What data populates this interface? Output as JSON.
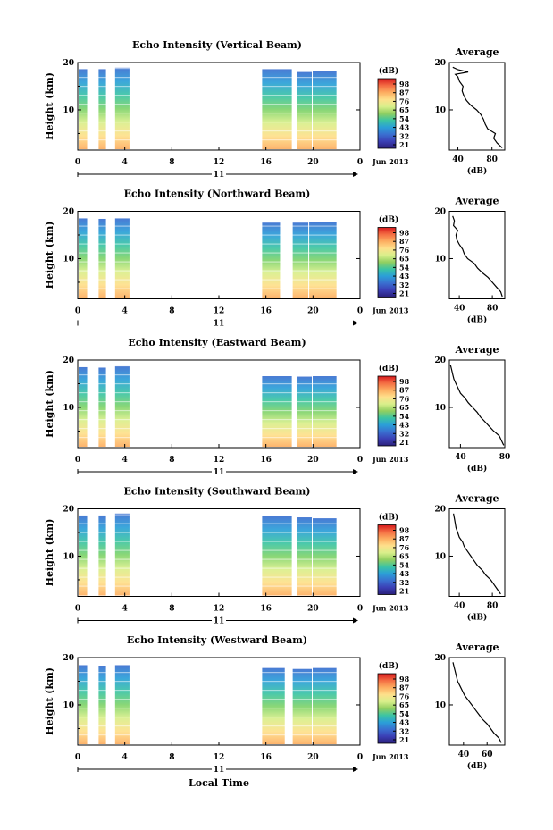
{
  "figure": {
    "xlabel": "Local Time",
    "date_label": "Jun 2013",
    "day_label": "11"
  },
  "colorbar": {
    "unit": "(dB)",
    "ticks": [
      "98",
      "87",
      "76",
      "65",
      "54",
      "43",
      "32",
      "21"
    ],
    "colors": [
      "#d7191c",
      "#f46d43",
      "#fdae61",
      "#fee08b",
      "#d9ef8b",
      "#91cf60",
      "#3bc4a4",
      "#2b9fd8",
      "#3a6fd0",
      "#3b3fb5",
      "#2a1f7a"
    ]
  },
  "chart_data": [
    {
      "type": "heatmap",
      "title": "Echo Intensity (Vertical Beam)",
      "ylabel": "Height (km)",
      "xlabel": "Local Time",
      "xlim": [
        0,
        24
      ],
      "ylim": [
        1.5,
        20
      ],
      "x_ticks": [
        "0",
        "4",
        "8",
        "12",
        "16",
        "20",
        "0"
      ],
      "y_ticks": [
        "20",
        "10"
      ],
      "data_columns": [
        [
          0,
          0.8,
          18.6
        ],
        [
          1.7,
          2.4,
          18.6
        ],
        [
          3.1,
          4.4,
          18.9
        ],
        [
          15.6,
          18.2,
          18.6
        ],
        [
          18.6,
          19.9,
          18.0
        ],
        [
          19.9,
          22.0,
          18.2
        ]
      ],
      "average": {
        "title": "Average",
        "xlabel": "(dB)",
        "xlim": [
          30,
          95
        ],
        "x_ticks": [
          "40",
          "80"
        ],
        "y_ticks": [
          "20",
          "10"
        ],
        "height": [
          2,
          3,
          4,
          5,
          6,
          7,
          8,
          9,
          10,
          11,
          12,
          13,
          14,
          15,
          16,
          17,
          17.5,
          18,
          18.5,
          19
        ],
        "value": [
          92,
          86,
          82,
          84,
          75,
          72,
          70,
          67,
          62,
          55,
          50,
          47,
          45,
          46,
          42,
          40,
          37,
          52,
          40,
          34
        ]
      }
    },
    {
      "type": "heatmap",
      "title": "Echo Intensity (Northward Beam)",
      "ylabel": "Height (km)",
      "xlabel": "Local Time",
      "xlim": [
        0,
        24
      ],
      "ylim": [
        1.5,
        20
      ],
      "x_ticks": [
        "0",
        "4",
        "8",
        "12",
        "16",
        "20",
        "0"
      ],
      "y_ticks": [
        "20",
        "10"
      ],
      "data_columns": [
        [
          0,
          0.8,
          18.5
        ],
        [
          1.7,
          2.4,
          18.4
        ],
        [
          3.1,
          4.4,
          18.5
        ],
        [
          15.6,
          17.2,
          17.6
        ],
        [
          18.2,
          19.6,
          17.6
        ],
        [
          19.6,
          22.0,
          17.8
        ]
      ],
      "average": {
        "title": "Average",
        "xlabel": "(dB)",
        "xlim": [
          28,
          95
        ],
        "x_ticks": [
          "40",
          "80"
        ],
        "y_ticks": [
          "20",
          "10"
        ],
        "height": [
          2,
          3,
          4,
          5,
          6,
          7,
          8,
          9,
          10,
          11,
          12,
          13,
          14,
          15,
          16,
          17,
          18,
          19
        ],
        "value": [
          92,
          90,
          85,
          80,
          75,
          68,
          62,
          58,
          50,
          46,
          44,
          40,
          37,
          36,
          38,
          33,
          34,
          32
        ]
      }
    },
    {
      "type": "heatmap",
      "title": "Echo Intensity (Eastward Beam)",
      "ylabel": "Height (km)",
      "xlabel": "Local Time",
      "xlim": [
        0,
        24
      ],
      "ylim": [
        1.5,
        20
      ],
      "x_ticks": [
        "0",
        "4",
        "8",
        "12",
        "16",
        "20",
        "0"
      ],
      "y_ticks": [
        "20",
        "10"
      ],
      "data_columns": [
        [
          0,
          0.8,
          18.5
        ],
        [
          1.7,
          2.4,
          18.4
        ],
        [
          3.1,
          4.4,
          18.7
        ],
        [
          15.6,
          18.2,
          16.6
        ],
        [
          18.6,
          19.9,
          16.5
        ],
        [
          19.9,
          22.0,
          16.6
        ]
      ],
      "average": {
        "title": "Average",
        "xlabel": "(dB)",
        "xlim": [
          30,
          80
        ],
        "x_ticks": [
          "40",
          "80"
        ],
        "y_ticks": [
          "20",
          "10"
        ],
        "height": [
          2,
          3,
          4,
          5,
          6,
          7,
          8,
          9,
          10,
          11,
          12,
          13,
          14,
          15,
          16,
          17,
          18,
          19
        ],
        "value": [
          79,
          77,
          75,
          70,
          66,
          62,
          58,
          55,
          51,
          47,
          44,
          40,
          38,
          36,
          34,
          33,
          32,
          31
        ]
      }
    },
    {
      "type": "heatmap",
      "title": "Echo Intensity (Southward Beam)",
      "ylabel": "Height (km)",
      "xlabel": "Local Time",
      "xlim": [
        0,
        24
      ],
      "ylim": [
        1.5,
        20
      ],
      "x_ticks": [
        "0",
        "4",
        "8",
        "12",
        "16",
        "20",
        "0"
      ],
      "y_ticks": [
        "20",
        "10"
      ],
      "data_columns": [
        [
          0,
          0.8,
          18.6
        ],
        [
          1.7,
          2.4,
          18.6
        ],
        [
          3.1,
          4.4,
          19.0
        ],
        [
          15.6,
          18.2,
          18.4
        ],
        [
          18.6,
          19.9,
          18.2
        ],
        [
          19.9,
          22.0,
          18.0
        ]
      ],
      "average": {
        "title": "Average",
        "xlabel": "(dB)",
        "xlim": [
          28,
          95
        ],
        "x_ticks": [
          "40",
          "80"
        ],
        "y_ticks": [
          "20",
          "10"
        ],
        "height": [
          2,
          3,
          4,
          5,
          6,
          7,
          8,
          9,
          10,
          11,
          12,
          13,
          14,
          15,
          16,
          17,
          18,
          19
        ],
        "value": [
          90,
          86,
          82,
          78,
          72,
          68,
          62,
          58,
          54,
          50,
          46,
          44,
          40,
          38,
          36,
          35,
          34,
          33
        ]
      }
    },
    {
      "type": "heatmap",
      "title": "Echo Intensity (Westward Beam)",
      "ylabel": "Height (km)",
      "xlabel": "Local Time",
      "xlim": [
        0,
        24
      ],
      "ylim": [
        1.5,
        20
      ],
      "x_ticks": [
        "0",
        "4",
        "8",
        "12",
        "16",
        "20",
        "0"
      ],
      "y_ticks": [
        "20",
        "10"
      ],
      "data_columns": [
        [
          0,
          0.8,
          18.4
        ],
        [
          1.7,
          2.4,
          18.3
        ],
        [
          3.1,
          4.4,
          18.4
        ],
        [
          15.6,
          17.6,
          17.8
        ],
        [
          18.2,
          19.9,
          17.6
        ],
        [
          19.9,
          22.0,
          17.8
        ]
      ],
      "average": {
        "title": "Average",
        "xlabel": "(dB)",
        "xlim": [
          28,
          75
        ],
        "x_ticks": [
          "40",
          "60"
        ],
        "y_ticks": [
          "20",
          "10"
        ],
        "height": [
          2,
          3,
          4,
          5,
          6,
          7,
          8,
          9,
          10,
          11,
          12,
          13,
          14,
          15,
          16,
          17,
          18,
          19
        ],
        "value": [
          72,
          70,
          66,
          63,
          60,
          56,
          53,
          50,
          47,
          44,
          41,
          39,
          37,
          35,
          34,
          33,
          32,
          31
        ]
      }
    }
  ]
}
